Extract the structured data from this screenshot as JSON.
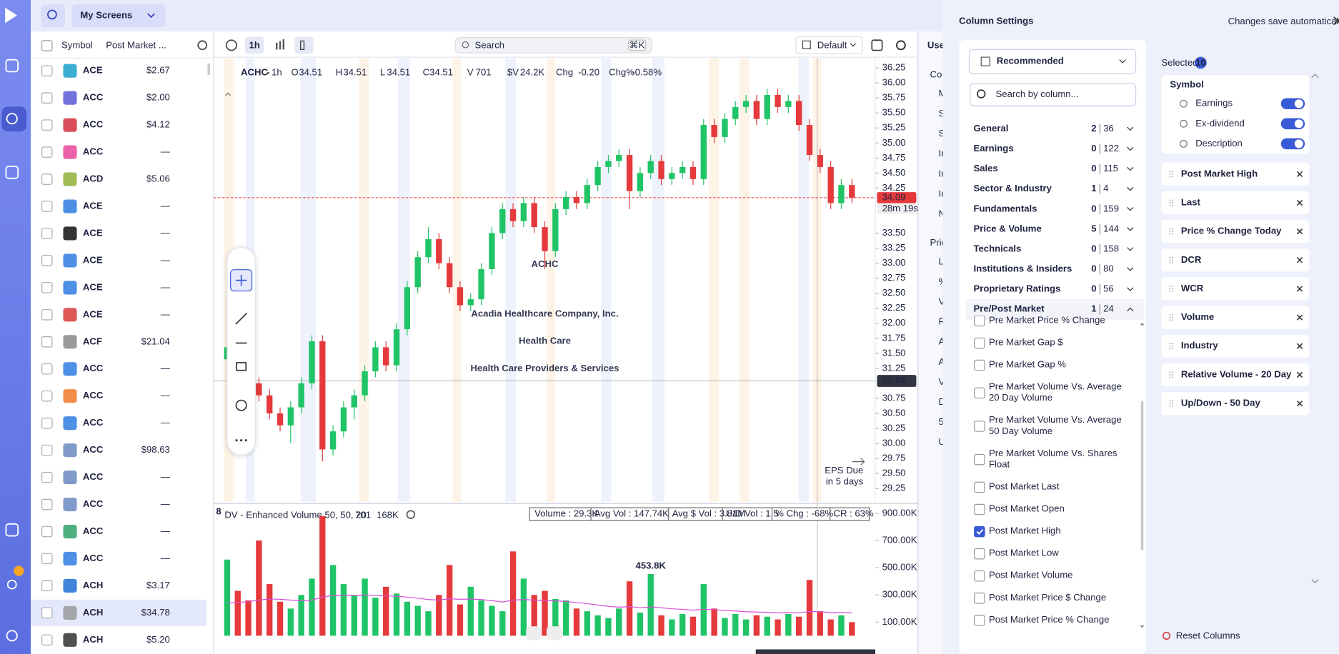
{
  "top_bar": {
    "screen": "My Screens",
    "interval": "1h",
    "search": "Search",
    "shortcut": "⌘K",
    "layout": "Default"
  },
  "watchlist": {
    "headers": [
      "Symbol",
      "Post Market ..."
    ],
    "rows": [
      [
        "ACE",
        "$2.67"
      ],
      [
        "ACC",
        "$2.00"
      ],
      [
        "ACC",
        "$4.12"
      ],
      [
        "ACC",
        "—"
      ],
      [
        "ACD",
        "$5.06"
      ],
      [
        "ACE",
        "—"
      ],
      [
        "ACE",
        "—"
      ],
      [
        "ACE",
        "—"
      ],
      [
        "ACE",
        "—"
      ],
      [
        "ACE",
        "—"
      ],
      [
        "ACF",
        "$21.04"
      ],
      [
        "ACC",
        "—"
      ],
      [
        "ACC",
        "—"
      ],
      [
        "ACC",
        "—"
      ],
      [
        "ACC",
        "$98.63"
      ],
      [
        "ACC",
        "—"
      ],
      [
        "ACC",
        "—"
      ],
      [
        "ACC",
        "—"
      ],
      [
        "ACC",
        "—"
      ],
      [
        "ACH",
        "$3.17"
      ],
      [
        "ACH",
        "$34.78"
      ],
      [
        "ACH",
        "$5.20"
      ]
    ]
  },
  "chart": {
    "type": "candlestick",
    "symbol": "ACHC",
    "tf": "1h",
    "ohlc": [
      {
        "label": "O",
        "value": "34.51"
      },
      {
        "label": "H",
        "value": "34.51"
      },
      {
        "label": "L",
        "value": "34.51"
      },
      {
        "label": "C",
        "value": "34.51"
      },
      {
        "label": "V",
        "value": "701"
      },
      {
        "label": "$V",
        "value": "24.2K"
      },
      {
        "label": "Chg",
        "value": "-0.20"
      },
      {
        "label": "Chg%",
        "value": "-0.58%"
      }
    ],
    "watermark": [
      "ACHC",
      "Acadia Healthcare Company, Inc.",
      "Health Care",
      "Health Care Providers & Services"
    ],
    "ylim": [
      29.1,
      36.4
    ],
    "yticks": [
      36.25,
      {
        "value": 36,
        "label": "36.00"
      },
      35.75,
      {
        "value": 35.5,
        "label": "35.50"
      },
      35.25,
      {
        "value": 35,
        "label": "35.00"
      },
      34.75,
      {
        "value": 34.5,
        "label": "34.50"
      },
      34.25,
      {
        "value": 33.5,
        "label": "33.50"
      },
      33.25,
      {
        "value": 33,
        "label": "33.00"
      },
      32.75,
      {
        "value": 32.5,
        "label": "32.50"
      },
      32.25,
      {
        "value": 32,
        "label": "32.00"
      },
      31.75,
      {
        "value": 31.5,
        "label": "31.50"
      },
      31.25,
      30.75,
      {
        "value": 30.5,
        "label": "30.50"
      },
      30.25,
      {
        "value": 30,
        "label": "30.00"
      },
      29.75,
      {
        "value": 29.5,
        "label": "29.50"
      },
      29.25
    ],
    "last_price": 34.09,
    "countdown": "28m 19s",
    "crosshair_price": 31.04,
    "eps": [
      "EPS Due",
      "in 5 days"
    ],
    "up_color": "#1fc466",
    "down_color": "#e5393b",
    "candles": [
      [
        31.4,
        31.7,
        31.3,
        31.6
      ],
      [
        31.6,
        31.7,
        31.3,
        31.4
      ],
      [
        31.4,
        31.5,
        30.9,
        31.0
      ],
      [
        31.0,
        31.1,
        30.7,
        30.8
      ],
      [
        30.8,
        30.9,
        30.4,
        30.5
      ],
      [
        30.5,
        30.6,
        30.2,
        30.3
      ],
      [
        30.3,
        30.7,
        30.0,
        30.6
      ],
      [
        30.6,
        31.1,
        30.5,
        31.0
      ],
      [
        31.0,
        31.8,
        30.9,
        31.7
      ],
      [
        31.7,
        31.8,
        29.7,
        29.9
      ],
      [
        29.9,
        30.3,
        29.8,
        30.2
      ],
      [
        30.2,
        30.7,
        30.1,
        30.6
      ],
      [
        30.6,
        30.9,
        30.4,
        30.8
      ],
      [
        30.8,
        31.3,
        30.7,
        31.2
      ],
      [
        31.2,
        31.7,
        31.1,
        31.6
      ],
      [
        31.6,
        31.7,
        31.2,
        31.3
      ],
      [
        31.3,
        32.0,
        31.2,
        31.9
      ],
      [
        31.9,
        32.7,
        31.8,
        32.6
      ],
      [
        32.6,
        33.2,
        32.5,
        33.1
      ],
      [
        33.1,
        33.6,
        33.0,
        33.4
      ],
      [
        33.4,
        33.5,
        32.9,
        33.0
      ],
      [
        33.0,
        33.1,
        32.5,
        32.6
      ],
      [
        32.6,
        32.7,
        32.2,
        32.3
      ],
      [
        32.3,
        32.5,
        32.2,
        32.4
      ],
      [
        32.4,
        33.0,
        32.3,
        32.9
      ],
      [
        32.9,
        33.6,
        32.8,
        33.5
      ],
      [
        33.5,
        34.0,
        33.4,
        33.9
      ],
      [
        33.9,
        34.0,
        33.6,
        33.7
      ],
      [
        33.7,
        34.1,
        33.6,
        34.0
      ],
      [
        34.0,
        34.1,
        33.5,
        33.6
      ],
      [
        33.6,
        33.7,
        32.9,
        33.2
      ],
      [
        33.2,
        34.0,
        33.1,
        33.9
      ],
      [
        33.9,
        34.2,
        33.8,
        34.1
      ],
      [
        34.1,
        34.2,
        33.9,
        34.0
      ],
      [
        34.0,
        34.4,
        33.9,
        34.3
      ],
      [
        34.3,
        34.7,
        34.2,
        34.6
      ],
      [
        34.6,
        34.8,
        34.5,
        34.7
      ],
      [
        34.7,
        34.9,
        34.6,
        34.8
      ],
      [
        34.8,
        34.9,
        33.9,
        34.2
      ],
      [
        34.2,
        34.6,
        34.1,
        34.5
      ],
      [
        34.5,
        34.8,
        34.4,
        34.7
      ],
      [
        34.7,
        34.8,
        34.3,
        34.4
      ],
      [
        34.4,
        34.6,
        34.3,
        34.5
      ],
      [
        34.5,
        34.7,
        34.4,
        34.6
      ],
      [
        34.6,
        34.7,
        34.3,
        34.4
      ],
      [
        34.4,
        35.4,
        34.3,
        35.3
      ],
      [
        35.3,
        35.4,
        35.0,
        35.1
      ],
      [
        35.1,
        35.5,
        35.0,
        35.4
      ],
      [
        35.4,
        35.7,
        35.3,
        35.6
      ],
      [
        35.6,
        35.8,
        35.5,
        35.7
      ],
      [
        35.7,
        35.8,
        35.3,
        35.4
      ],
      [
        35.4,
        35.9,
        35.3,
        35.8
      ],
      [
        35.8,
        35.9,
        35.5,
        35.6
      ],
      [
        35.6,
        35.8,
        35.5,
        35.7
      ],
      [
        35.7,
        35.8,
        35.2,
        35.3
      ],
      [
        35.3,
        35.4,
        34.7,
        34.8
      ],
      [
        34.8,
        34.9,
        34.5,
        34.6
      ],
      [
        34.6,
        34.7,
        33.9,
        34.0
      ],
      [
        34.0,
        34.4,
        33.9,
        34.3
      ],
      [
        34.3,
        34.4,
        34.0,
        34.09
      ]
    ]
  },
  "volume": {
    "pane": "8",
    "title": "DV - Enhanced Volume 50, 50, 20",
    "last": "701",
    "avg_last": "168K",
    "stats": [
      "Volume : 29.3K",
      "Avg Vol : 147.74K",
      "Avg $ Vol : 3.81M",
      "U/D Vol : 1.5",
      "% Chg : -68%",
      "CR : 63%"
    ],
    "ylim": [
      0,
      960000
    ],
    "yticks": [
      {
        "value": 900000,
        "label": "900.00K"
      },
      {
        "value": 700000,
        "label": "700.00K"
      },
      {
        "value": 500000,
        "label": "500.00K"
      },
      {
        "value": 300000,
        "label": "300.00K"
      },
      {
        "value": 100000,
        "label": "100.00K"
      }
    ],
    "annotation": {
      "index": 40,
      "label": "453.8K"
    },
    "avg_color": "#d64fd6",
    "values": [
      560000,
      330000,
      260000,
      700000,
      380000,
      250000,
      200000,
      300000,
      420000,
      880000,
      520000,
      380000,
      300000,
      420000,
      280000,
      360000,
      310000,
      250000,
      220000,
      180000,
      300000,
      520000,
      230000,
      360000,
      260000,
      220000,
      180000,
      620000,
      420000,
      300000,
      330000,
      270000,
      260000,
      200000,
      180000,
      150000,
      130000,
      200000,
      400000,
      170000,
      453800,
      150000,
      120000,
      160000,
      140000,
      380000,
      200000,
      130000,
      160000,
      120000,
      150000,
      140000,
      120000,
      160000,
      140000,
      410000,
      180000,
      120000,
      150000,
      100000
    ],
    "avg": [
      240000,
      245000,
      250000,
      262000,
      270000,
      268000,
      262000,
      258000,
      262000,
      285000,
      295000,
      298000,
      296000,
      300000,
      296000,
      294000,
      290000,
      284000,
      276000,
      266000,
      262000,
      272000,
      268000,
      270000,
      266000,
      258000,
      248000,
      262000,
      266000,
      262000,
      260000,
      256000,
      252000,
      244000,
      236000,
      226000,
      216000,
      210000,
      214000,
      206000,
      212000,
      206000,
      198000,
      194000,
      188000,
      194000,
      192000,
      186000,
      182000,
      176000,
      174000,
      172000,
      168000,
      170000,
      168000,
      178000,
      176000,
      170000,
      170000,
      168000
    ]
  },
  "side_panel": {
    "title": "Use",
    "section1": "Co",
    "items1": [
      "M",
      "S",
      "S",
      "In",
      "In",
      "In",
      "N"
    ],
    "section2": "Pric",
    "items2": [
      "L",
      "%",
      "V",
      "R",
      "A",
      "A",
      "V",
      "D",
      "5",
      "U"
    ]
  },
  "column_settings": {
    "title": "Column Settings",
    "note": "Changes save automatically",
    "preset": "Recommended",
    "search": "Search by column...",
    "groups": [
      {
        "name": "General",
        "selected": 2,
        "total": 36
      },
      {
        "name": "Earnings",
        "selected": 0,
        "total": 122
      },
      {
        "name": "Sales",
        "selected": 0,
        "total": 115
      },
      {
        "name": "Sector & Industry",
        "selected": 1,
        "total": 4
      },
      {
        "name": "Fundamentals",
        "selected": 0,
        "total": 159
      },
      {
        "name": "Price & Volume",
        "selected": 5,
        "total": 144
      },
      {
        "name": "Technicals",
        "selected": 0,
        "total": 158
      },
      {
        "name": "Institutions & Insiders",
        "selected": 0,
        "total": 80
      },
      {
        "name": "Proprietary Ratings",
        "selected": 0,
        "total": 56
      },
      {
        "name": "Pre/Post Market",
        "selected": 1,
        "total": 24
      }
    ],
    "options": [
      {
        "name": "Pre Market Price % Change",
        "checked": false
      },
      {
        "name": "Pre Market Gap $",
        "checked": false
      },
      {
        "name": "Pre Market Gap %",
        "checked": false
      },
      {
        "name": "Pre Market Volume Vs. Average 20 Day Volume",
        "checked": false
      },
      {
        "name": "Pre Market Volume Vs. Average 50 Day Volume",
        "checked": false
      },
      {
        "name": "Pre Market Volume Vs. Shares Float",
        "checked": false
      },
      {
        "name": "Post Market Last",
        "checked": false
      },
      {
        "name": "Post Market Open",
        "checked": false
      },
      {
        "name": "Post Market High",
        "checked": true
      },
      {
        "name": "Post Market Low",
        "checked": false
      },
      {
        "name": "Post Market Volume",
        "checked": false
      },
      {
        "name": "Post Market Price $ Change",
        "checked": false
      },
      {
        "name": "Post Market Price % Change",
        "checked": false
      }
    ],
    "selected_label": "Selected",
    "selected_count": 10,
    "symbol": {
      "name": "Symbol",
      "toggles": [
        {
          "name": "Earnings",
          "on": true
        },
        {
          "name": "Ex-dividend",
          "on": true
        },
        {
          "name": "Description",
          "on": true
        }
      ]
    },
    "selected": [
      "Post Market High",
      "Last",
      "Price % Change Today",
      "DCR",
      "WCR",
      "Volume",
      "Industry",
      "Relative Volume - 20 Day",
      "Up/Down - 50 Day"
    ],
    "reset": "Reset Columns"
  }
}
